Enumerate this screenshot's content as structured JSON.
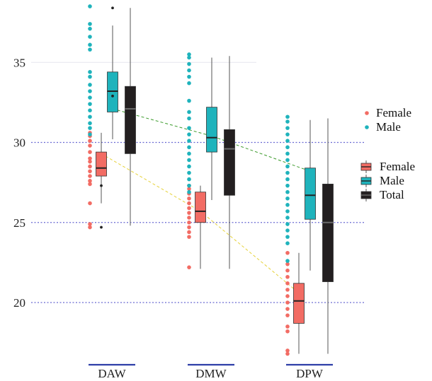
{
  "chart_data": {
    "type": "box",
    "title": "",
    "xlabel": "",
    "ylabel": "",
    "ylim": [
      16.5,
      38.5
    ],
    "yticks": [
      20,
      25,
      30,
      35
    ],
    "grid": "dotted horizontal lines at 20, 25, 30; faint line at 35",
    "categories": [
      "DAW",
      "DMW",
      "DPW"
    ],
    "series": [
      {
        "name": "Female",
        "color": "#f26c64",
        "boxes": [
          {
            "category": "DAW",
            "min": 26.2,
            "q1": 27.9,
            "median": 28.4,
            "q3": 29.4,
            "max": 30.6,
            "outliers": [
              27.3,
              24.7
            ]
          },
          {
            "category": "DMW",
            "min": 22.1,
            "q1": 25.0,
            "median": 25.7,
            "q3": 26.9,
            "max": 27.3,
            "outliers": []
          },
          {
            "category": "DPW",
            "min": 16.8,
            "q1": 18.7,
            "median": 20.1,
            "q3": 21.2,
            "max": 23.1,
            "outliers": []
          }
        ],
        "points": [
          [
            30.6,
            30.4,
            30.1,
            29.8,
            29.4,
            29.0,
            28.8,
            28.5,
            28.2,
            27.9,
            27.6,
            27.4,
            26.2,
            24.9,
            24.7
          ],
          [
            27.3,
            27.1,
            26.8,
            26.5,
            26.2,
            25.9,
            25.6,
            25.3,
            25.0,
            24.7,
            24.4,
            24.1,
            22.2
          ],
          [
            23.1,
            22.4,
            22.0,
            21.6,
            21.2,
            20.8,
            20.4,
            20.0,
            19.6,
            19.2,
            18.5,
            18.2,
            17.0,
            16.8
          ]
        ]
      },
      {
        "name": "Male",
        "color": "#1fb3bc",
        "boxes": [
          {
            "category": "DAW",
            "min": 30.2,
            "q1": 31.9,
            "median": 33.2,
            "q3": 34.4,
            "max": 37.3,
            "outliers": [
              38.4,
              32.9
            ]
          },
          {
            "category": "DMW",
            "min": 26.4,
            "q1": 29.4,
            "median": 30.3,
            "q3": 32.2,
            "max": 35.3,
            "outliers": []
          },
          {
            "category": "DPW",
            "min": 22.0,
            "q1": 25.2,
            "median": 26.7,
            "q3": 28.4,
            "max": 31.4,
            "outliers": []
          }
        ],
        "points": [
          [
            38.5,
            37.4,
            37.1,
            36.6,
            36.1,
            35.8,
            34.4,
            34.1,
            33.6,
            33.2,
            32.8,
            32.4,
            32.0,
            31.6,
            31.2,
            30.9,
            30.5
          ],
          [
            35.5,
            35.3,
            34.9,
            34.5,
            34.1,
            33.7,
            32.6,
            31.9,
            31.5,
            30.9,
            30.5,
            30.1,
            29.7,
            29.3,
            28.9,
            28.5,
            28.1,
            27.7,
            27.3,
            26.9
          ],
          [
            31.6,
            31.3,
            30.9,
            30.5,
            30.1,
            29.7,
            29.3,
            28.9,
            28.5,
            28.1,
            27.7,
            27.3,
            26.9,
            26.5,
            26.1,
            25.7,
            25.3,
            24.9,
            24.5,
            24.1,
            23.7,
            22.6
          ]
        ]
      },
      {
        "name": "Total",
        "color": "#231f20",
        "boxes": [
          {
            "category": "DAW",
            "min": 24.8,
            "q1": 29.3,
            "median": 32.1,
            "q3": 33.5,
            "max": 38.4,
            "outliers": []
          },
          {
            "category": "DMW",
            "min": 22.1,
            "q1": 26.7,
            "median": 29.6,
            "q3": 30.8,
            "max": 35.4,
            "outliers": []
          },
          {
            "category": "DPW",
            "min": 16.8,
            "q1": 21.3,
            "median": 25.0,
            "q3": 27.4,
            "max": 31.5,
            "outliers": []
          }
        ]
      }
    ],
    "trend_lines": [
      {
        "series": "Female",
        "color": "#e6d23a",
        "values": [
          29.3,
          25.7,
          20.6
        ]
      },
      {
        "series": "Male",
        "color": "#3a9a2a",
        "values": [
          32.1,
          30.4,
          28.2
        ]
      }
    ],
    "legend_points": [
      {
        "label": "Female",
        "color": "#f26c64"
      },
      {
        "label": "Male",
        "color": "#1fb3bc"
      }
    ],
    "legend_boxes": [
      {
        "label": "Female",
        "color": "#f26c64"
      },
      {
        "label": "Male",
        "color": "#1fb3bc"
      },
      {
        "label": "Total",
        "color": "#231f20"
      }
    ],
    "legend_position": "right"
  }
}
